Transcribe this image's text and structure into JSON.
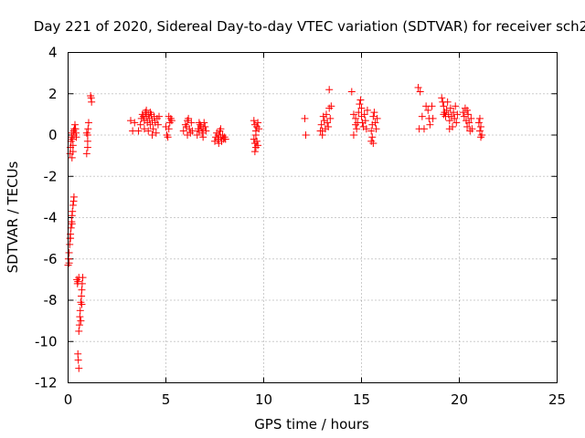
{
  "chart_data": {
    "type": "scatter",
    "title": "Day 221 of 2020, Sidereal Day-to-day VTEC variation (SDTVAR) for receiver sch2",
    "xlabel": "GPS time / hours",
    "ylabel": "SDTVAR / TECUs",
    "xlim": [
      0,
      25
    ],
    "ylim": [
      -12,
      4
    ],
    "xticks": [
      0,
      5,
      10,
      15,
      20,
      25
    ],
    "yticks": [
      -12,
      -10,
      -8,
      -6,
      -4,
      -2,
      0,
      2,
      4
    ],
    "grid": true,
    "marker": "+",
    "color": "#ff0000",
    "series": [
      {
        "name": "sch2",
        "points": [
          [
            0.0,
            -6.3
          ],
          [
            0.02,
            -6.0
          ],
          [
            0.05,
            -5.7
          ],
          [
            0.08,
            -5.3
          ],
          [
            0.1,
            -5.0
          ],
          [
            0.12,
            -4.8
          ],
          [
            0.15,
            -4.5
          ],
          [
            0.18,
            -4.2
          ],
          [
            0.2,
            -3.9
          ],
          [
            0.22,
            -3.7
          ],
          [
            0.25,
            -3.4
          ],
          [
            0.28,
            -3.2
          ],
          [
            0.3,
            -3.0
          ],
          [
            0.05,
            -6.2
          ],
          [
            0.12,
            -5.0
          ],
          [
            0.2,
            -4.3
          ],
          [
            0.1,
            -0.9
          ],
          [
            0.12,
            -0.6
          ],
          [
            0.15,
            -0.3
          ],
          [
            0.18,
            -0.1
          ],
          [
            0.2,
            0.1
          ],
          [
            0.22,
            -0.2
          ],
          [
            0.25,
            -0.5
          ],
          [
            0.28,
            0.2
          ],
          [
            0.3,
            0.0
          ],
          [
            0.32,
            0.3
          ],
          [
            0.35,
            0.5
          ],
          [
            0.38,
            0.3
          ],
          [
            0.4,
            0.1
          ],
          [
            0.42,
            -0.1
          ],
          [
            0.2,
            -1.1
          ],
          [
            0.25,
            -0.8
          ],
          [
            0.45,
            -7.0
          ],
          [
            0.48,
            -7.2
          ],
          [
            0.5,
            -7.1
          ],
          [
            0.55,
            -6.9
          ],
          [
            0.5,
            -10.6
          ],
          [
            0.52,
            -10.9
          ],
          [
            0.55,
            -11.3
          ],
          [
            0.55,
            -9.5
          ],
          [
            0.58,
            -9.2
          ],
          [
            0.6,
            -8.8
          ],
          [
            0.62,
            -8.5
          ],
          [
            0.65,
            -8.1
          ],
          [
            0.68,
            -7.8
          ],
          [
            0.7,
            -7.5
          ],
          [
            0.72,
            -7.2
          ],
          [
            0.75,
            -6.9
          ],
          [
            0.65,
            -9.0
          ],
          [
            0.7,
            -8.2
          ],
          [
            0.95,
            -0.9
          ],
          [
            1.0,
            -0.6
          ],
          [
            1.0,
            0.0
          ],
          [
            1.02,
            0.3
          ],
          [
            1.05,
            0.6
          ],
          [
            0.95,
            0.1
          ],
          [
            1.0,
            -0.3
          ],
          [
            1.15,
            1.9
          ],
          [
            1.2,
            1.6
          ],
          [
            1.18,
            1.8
          ],
          [
            3.2,
            0.7
          ],
          [
            3.3,
            0.2
          ],
          [
            3.4,
            0.6
          ],
          [
            3.6,
            0.2
          ],
          [
            3.7,
            0.5
          ],
          [
            3.75,
            0.8
          ],
          [
            3.8,
            1.0
          ],
          [
            3.85,
            0.9
          ],
          [
            3.9,
            0.7
          ],
          [
            3.95,
            1.1
          ],
          [
            4.0,
            0.9
          ],
          [
            4.05,
            0.6
          ],
          [
            4.1,
            1.0
          ],
          [
            4.15,
            0.8
          ],
          [
            4.2,
            0.5
          ],
          [
            4.25,
            1.0
          ],
          [
            4.3,
            0.7
          ],
          [
            4.35,
            0.3
          ],
          [
            4.4,
            0.9
          ],
          [
            4.45,
            0.6
          ],
          [
            4.5,
            0.1
          ],
          [
            4.55,
            0.8
          ],
          [
            4.6,
            0.5
          ],
          [
            4.65,
            0.9
          ],
          [
            3.9,
            0.3
          ],
          [
            4.1,
            0.2
          ],
          [
            4.3,
            0.0
          ],
          [
            4.0,
            1.2
          ],
          [
            4.2,
            1.1
          ],
          [
            5.0,
            0.4
          ],
          [
            5.05,
            0.0
          ],
          [
            5.1,
            -0.1
          ],
          [
            5.15,
            0.3
          ],
          [
            5.2,
            0.6
          ],
          [
            5.25,
            0.8
          ],
          [
            5.3,
            0.7
          ],
          [
            5.15,
            0.9
          ],
          [
            5.9,
            0.2
          ],
          [
            6.0,
            0.5
          ],
          [
            6.05,
            0.4
          ],
          [
            6.1,
            0.7
          ],
          [
            6.15,
            0.8
          ],
          [
            6.2,
            0.3
          ],
          [
            6.25,
            0.1
          ],
          [
            6.3,
            0.6
          ],
          [
            6.35,
            0.2
          ],
          [
            6.1,
            0.0
          ],
          [
            6.6,
            0.0
          ],
          [
            6.65,
            0.3
          ],
          [
            6.7,
            0.2
          ],
          [
            6.75,
            0.5
          ],
          [
            6.8,
            0.4
          ],
          [
            6.85,
            0.1
          ],
          [
            6.9,
            0.3
          ],
          [
            6.95,
            0.6
          ],
          [
            7.0,
            0.4
          ],
          [
            7.05,
            0.2
          ],
          [
            6.7,
            0.6
          ],
          [
            6.9,
            -0.1
          ],
          [
            7.5,
            -0.3
          ],
          [
            7.55,
            -0.1
          ],
          [
            7.6,
            0.1
          ],
          [
            7.65,
            -0.2
          ],
          [
            7.7,
            0.0
          ],
          [
            7.75,
            0.2
          ],
          [
            7.8,
            -0.1
          ],
          [
            7.85,
            -0.3
          ],
          [
            7.9,
            0.0
          ],
          [
            7.95,
            -0.2
          ],
          [
            8.0,
            -0.1
          ],
          [
            8.05,
            -0.2
          ],
          [
            7.7,
            -0.4
          ],
          [
            7.8,
            0.3
          ],
          [
            9.5,
            -0.2
          ],
          [
            9.55,
            -0.4
          ],
          [
            9.6,
            -0.6
          ],
          [
            9.65,
            -0.3
          ],
          [
            9.7,
            -0.5
          ],
          [
            9.55,
            -0.8
          ],
          [
            9.6,
            0.0
          ],
          [
            9.5,
            0.7
          ],
          [
            9.55,
            0.5
          ],
          [
            9.6,
            0.2
          ],
          [
            9.65,
            0.4
          ],
          [
            9.7,
            0.6
          ],
          [
            9.75,
            0.3
          ],
          [
            12.1,
            0.8
          ],
          [
            12.15,
            0.0
          ],
          [
            12.9,
            0.2
          ],
          [
            12.95,
            0.5
          ],
          [
            13.0,
            0.0
          ],
          [
            13.05,
            0.9
          ],
          [
            13.1,
            0.7
          ],
          [
            13.15,
            0.3
          ],
          [
            13.2,
            1.0
          ],
          [
            13.25,
            0.6
          ],
          [
            13.3,
            0.4
          ],
          [
            13.35,
            1.3
          ],
          [
            13.4,
            0.8
          ],
          [
            13.45,
            1.4
          ],
          [
            13.35,
            2.2
          ],
          [
            13.0,
            0.2
          ],
          [
            14.5,
            2.1
          ],
          [
            14.6,
            1.0
          ],
          [
            14.7,
            0.8
          ],
          [
            14.75,
            0.3
          ],
          [
            14.8,
            0.6
          ],
          [
            14.85,
            1.1
          ],
          [
            14.9,
            1.5
          ],
          [
            14.95,
            1.7
          ],
          [
            15.0,
            0.9
          ],
          [
            15.05,
            0.6
          ],
          [
            15.1,
            0.4
          ],
          [
            15.15,
            1.0
          ],
          [
            15.2,
            0.7
          ],
          [
            15.25,
            0.3
          ],
          [
            15.3,
            1.2
          ],
          [
            14.6,
            0.0
          ],
          [
            14.7,
            0.5
          ],
          [
            15.0,
            1.3
          ],
          [
            15.5,
            0.2
          ],
          [
            15.55,
            0.5
          ],
          [
            15.6,
            0.9
          ],
          [
            15.65,
            1.1
          ],
          [
            15.7,
            0.6
          ],
          [
            15.75,
            0.3
          ],
          [
            15.8,
            0.8
          ],
          [
            15.5,
            -0.3
          ],
          [
            15.55,
            -0.1
          ],
          [
            15.6,
            -0.4
          ],
          [
            17.9,
            2.3
          ],
          [
            18.0,
            2.1
          ],
          [
            18.1,
            0.9
          ],
          [
            17.95,
            0.3
          ],
          [
            18.2,
            0.3
          ],
          [
            18.3,
            1.4
          ],
          [
            18.4,
            1.2
          ],
          [
            18.45,
            0.8
          ],
          [
            18.5,
            0.5
          ],
          [
            18.6,
            1.4
          ],
          [
            18.65,
            0.8
          ],
          [
            19.1,
            1.8
          ],
          [
            19.15,
            1.6
          ],
          [
            19.2,
            1.4
          ],
          [
            19.25,
            1.1
          ],
          [
            19.3,
            0.9
          ],
          [
            19.35,
            1.2
          ],
          [
            19.4,
            1.6
          ],
          [
            19.45,
            1.0
          ],
          [
            19.5,
            0.7
          ],
          [
            19.55,
            1.3
          ],
          [
            19.6,
            0.9
          ],
          [
            19.65,
            0.4
          ],
          [
            19.7,
            1.1
          ],
          [
            19.75,
            0.8
          ],
          [
            19.8,
            1.4
          ],
          [
            19.85,
            0.6
          ],
          [
            19.9,
            1.0
          ],
          [
            19.5,
            0.3
          ],
          [
            19.2,
            1.0
          ],
          [
            20.2,
            1.1
          ],
          [
            20.25,
            0.9
          ],
          [
            20.3,
            1.3
          ],
          [
            20.35,
            0.7
          ],
          [
            20.4,
            0.4
          ],
          [
            20.45,
            1.0
          ],
          [
            20.5,
            0.6
          ],
          [
            20.55,
            0.2
          ],
          [
            20.6,
            0.8
          ],
          [
            20.65,
            0.3
          ],
          [
            20.4,
            1.2
          ],
          [
            21.0,
            0.6
          ],
          [
            21.05,
            0.2
          ],
          [
            21.1,
            0.4
          ],
          [
            21.15,
            0.0
          ],
          [
            21.05,
            0.8
          ],
          [
            21.1,
            -0.1
          ]
        ]
      }
    ]
  }
}
